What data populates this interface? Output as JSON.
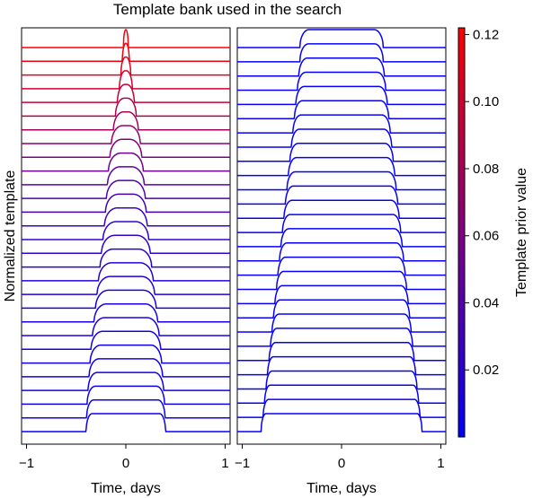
{
  "chart_data": {
    "type": "line",
    "title": "Template bank used in the search",
    "ylabel": "Normalized template",
    "colorbar": {
      "label": "Template prior value",
      "ticks": [
        0.02,
        0.04,
        0.06,
        0.08,
        0.1,
        0.12
      ],
      "tick_labels": [
        "0.02",
        "0.04",
        "0.06",
        "0.08",
        "0.10",
        "0.12"
      ],
      "range": [
        0.0,
        0.122
      ],
      "color_low": "#0000ff",
      "color_high": "#ff0000"
    },
    "panels": [
      {
        "xlabel": "Time, days",
        "xlim": [
          -1.05,
          1.05
        ],
        "xticks": [
          -1,
          0,
          1
        ],
        "xtick_labels": [
          "−1",
          "0",
          "1"
        ],
        "templates_bottom_to_top": [
          {
            "total_duration_days": 0.8,
            "flat_fraction": 0.85,
            "prior": 0.005
          },
          {
            "total_duration_days": 0.79,
            "flat_fraction": 0.82,
            "prior": 0.006
          },
          {
            "total_duration_days": 0.78,
            "flat_fraction": 0.79,
            "prior": 0.006
          },
          {
            "total_duration_days": 0.76,
            "flat_fraction": 0.76,
            "prior": 0.007
          },
          {
            "total_duration_days": 0.74,
            "flat_fraction": 0.73,
            "prior": 0.008
          },
          {
            "total_duration_days": 0.72,
            "flat_fraction": 0.7,
            "prior": 0.009
          },
          {
            "total_duration_days": 0.7,
            "flat_fraction": 0.67,
            "prior": 0.01
          },
          {
            "total_duration_days": 0.67,
            "flat_fraction": 0.64,
            "prior": 0.011
          },
          {
            "total_duration_days": 0.64,
            "flat_fraction": 0.61,
            "prior": 0.012
          },
          {
            "total_duration_days": 0.61,
            "flat_fraction": 0.58,
            "prior": 0.013
          },
          {
            "total_duration_days": 0.58,
            "flat_fraction": 0.55,
            "prior": 0.015
          },
          {
            "total_duration_days": 0.55,
            "flat_fraction": 0.52,
            "prior": 0.017
          },
          {
            "total_duration_days": 0.52,
            "flat_fraction": 0.49,
            "prior": 0.019
          },
          {
            "total_duration_days": 0.49,
            "flat_fraction": 0.46,
            "prior": 0.021
          },
          {
            "total_duration_days": 0.46,
            "flat_fraction": 0.43,
            "prior": 0.024
          },
          {
            "total_duration_days": 0.43,
            "flat_fraction": 0.4,
            "prior": 0.028
          },
          {
            "total_duration_days": 0.41,
            "flat_fraction": 0.37,
            "prior": 0.033
          },
          {
            "total_duration_days": 0.39,
            "flat_fraction": 0.34,
            "prior": 0.039
          },
          {
            "total_duration_days": 0.37,
            "flat_fraction": 0.31,
            "prior": 0.046
          },
          {
            "total_duration_days": 0.35,
            "flat_fraction": 0.28,
            "prior": 0.054
          },
          {
            "total_duration_days": 0.32,
            "flat_fraction": 0.25,
            "prior": 0.062
          },
          {
            "total_duration_days": 0.29,
            "flat_fraction": 0.22,
            "prior": 0.07
          },
          {
            "total_duration_days": 0.25,
            "flat_fraction": 0.19,
            "prior": 0.078
          },
          {
            "total_duration_days": 0.21,
            "flat_fraction": 0.15,
            "prior": 0.086
          },
          {
            "total_duration_days": 0.17,
            "flat_fraction": 0.12,
            "prior": 0.094
          },
          {
            "total_duration_days": 0.13,
            "flat_fraction": 0.09,
            "prior": 0.101
          },
          {
            "total_duration_days": 0.1,
            "flat_fraction": 0.06,
            "prior": 0.108
          },
          {
            "total_duration_days": 0.07,
            "flat_fraction": 0.03,
            "prior": 0.114
          },
          {
            "total_duration_days": 0.05,
            "flat_fraction": 0.01,
            "prior": 0.12
          }
        ]
      },
      {
        "xlabel": "Time, days",
        "xlim": [
          -1.05,
          1.05
        ],
        "xticks": [
          -1,
          0,
          1
        ],
        "xtick_labels": [
          "−1",
          "0",
          "1"
        ],
        "templates_bottom_to_top": [
          {
            "total_duration_days": 1.62,
            "flat_fraction": 0.94,
            "prior": 0.003
          },
          {
            "total_duration_days": 1.58,
            "flat_fraction": 0.93,
            "prior": 0.003
          },
          {
            "total_duration_days": 1.55,
            "flat_fraction": 0.93,
            "prior": 0.003
          },
          {
            "total_duration_days": 1.52,
            "flat_fraction": 0.92,
            "prior": 0.003
          },
          {
            "total_duration_days": 1.49,
            "flat_fraction": 0.92,
            "prior": 0.003
          },
          {
            "total_duration_days": 1.46,
            "flat_fraction": 0.91,
            "prior": 0.003
          },
          {
            "total_duration_days": 1.43,
            "flat_fraction": 0.91,
            "prior": 0.003
          },
          {
            "total_duration_days": 1.4,
            "flat_fraction": 0.9,
            "prior": 0.003
          },
          {
            "total_duration_days": 1.37,
            "flat_fraction": 0.9,
            "prior": 0.003
          },
          {
            "total_duration_days": 1.34,
            "flat_fraction": 0.89,
            "prior": 0.003
          },
          {
            "total_duration_days": 1.31,
            "flat_fraction": 0.89,
            "prior": 0.003
          },
          {
            "total_duration_days": 1.28,
            "flat_fraction": 0.88,
            "prior": 0.003
          },
          {
            "total_duration_days": 1.25,
            "flat_fraction": 0.88,
            "prior": 0.003
          },
          {
            "total_duration_days": 1.22,
            "flat_fraction": 0.87,
            "prior": 0.003
          },
          {
            "total_duration_days": 1.19,
            "flat_fraction": 0.87,
            "prior": 0.003
          },
          {
            "total_duration_days": 1.16,
            "flat_fraction": 0.86,
            "prior": 0.003
          },
          {
            "total_duration_days": 1.13,
            "flat_fraction": 0.86,
            "prior": 0.003
          },
          {
            "total_duration_days": 1.1,
            "flat_fraction": 0.85,
            "prior": 0.003
          },
          {
            "total_duration_days": 1.07,
            "flat_fraction": 0.85,
            "prior": 0.003
          },
          {
            "total_duration_days": 1.04,
            "flat_fraction": 0.84,
            "prior": 0.003
          },
          {
            "total_duration_days": 1.01,
            "flat_fraction": 0.84,
            "prior": 0.003
          },
          {
            "total_duration_days": 0.98,
            "flat_fraction": 0.83,
            "prior": 0.003
          },
          {
            "total_duration_days": 0.95,
            "flat_fraction": 0.83,
            "prior": 0.003
          },
          {
            "total_duration_days": 0.92,
            "flat_fraction": 0.82,
            "prior": 0.003
          },
          {
            "total_duration_days": 0.89,
            "flat_fraction": 0.81,
            "prior": 0.003
          },
          {
            "total_duration_days": 0.86,
            "flat_fraction": 0.8,
            "prior": 0.003
          },
          {
            "total_duration_days": 0.84,
            "flat_fraction": 0.79,
            "prior": 0.003
          },
          {
            "total_duration_days": 0.84,
            "flat_fraction": 0.78,
            "prior": 0.003
          }
        ]
      }
    ]
  }
}
